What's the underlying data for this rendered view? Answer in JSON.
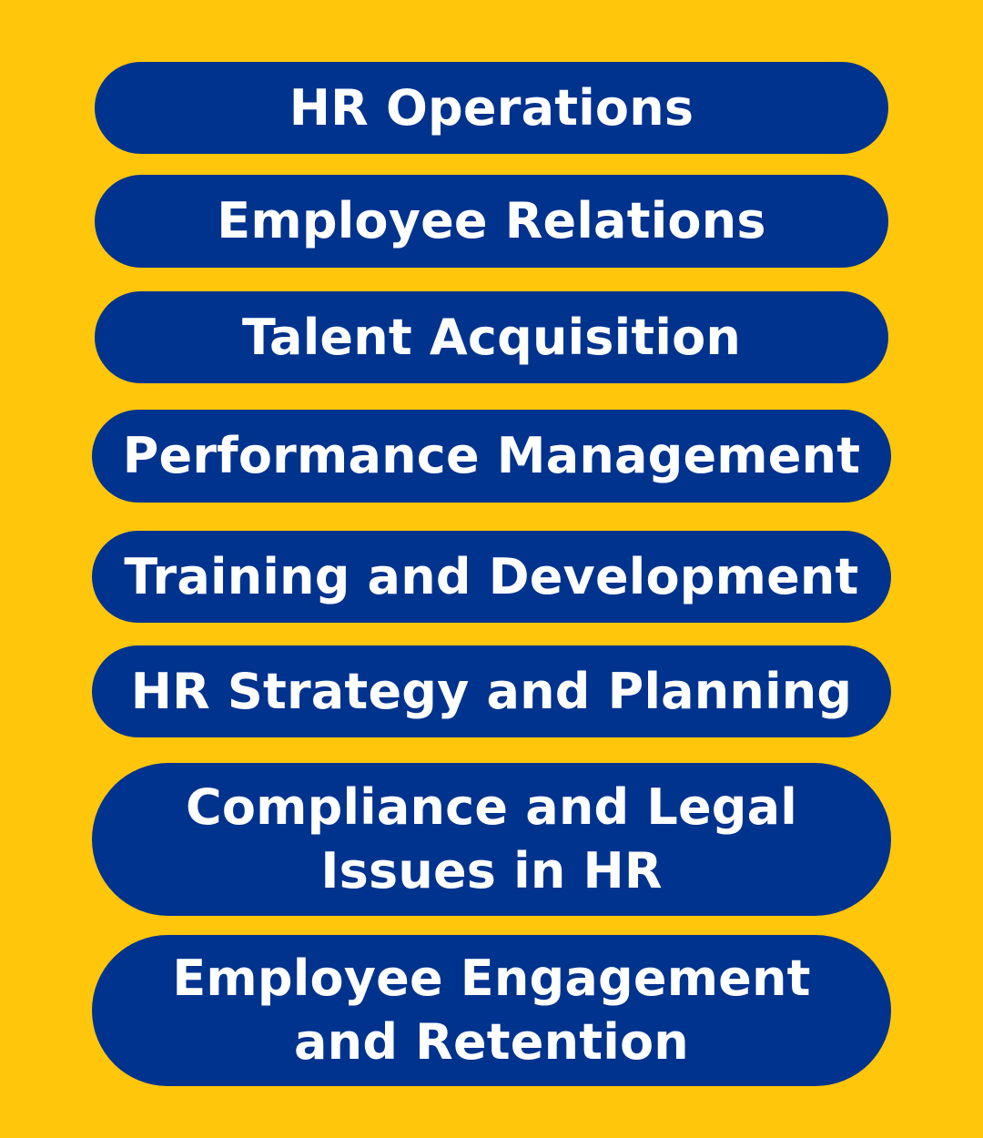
{
  "colors": {
    "background": "#FFC60B",
    "pill_fill": "#00338D",
    "pill_text": "#FFFFFF"
  },
  "items": [
    {
      "label": "HR Operations"
    },
    {
      "label": "Employee Relations"
    },
    {
      "label": "Talent Acquisition"
    },
    {
      "label": "Performance Management"
    },
    {
      "label": "Training and Development"
    },
    {
      "label": "HR Strategy and Planning"
    },
    {
      "label": "Compliance and Legal\nIssues in HR"
    },
    {
      "label": "Employee Engagement\nand Retention"
    }
  ]
}
